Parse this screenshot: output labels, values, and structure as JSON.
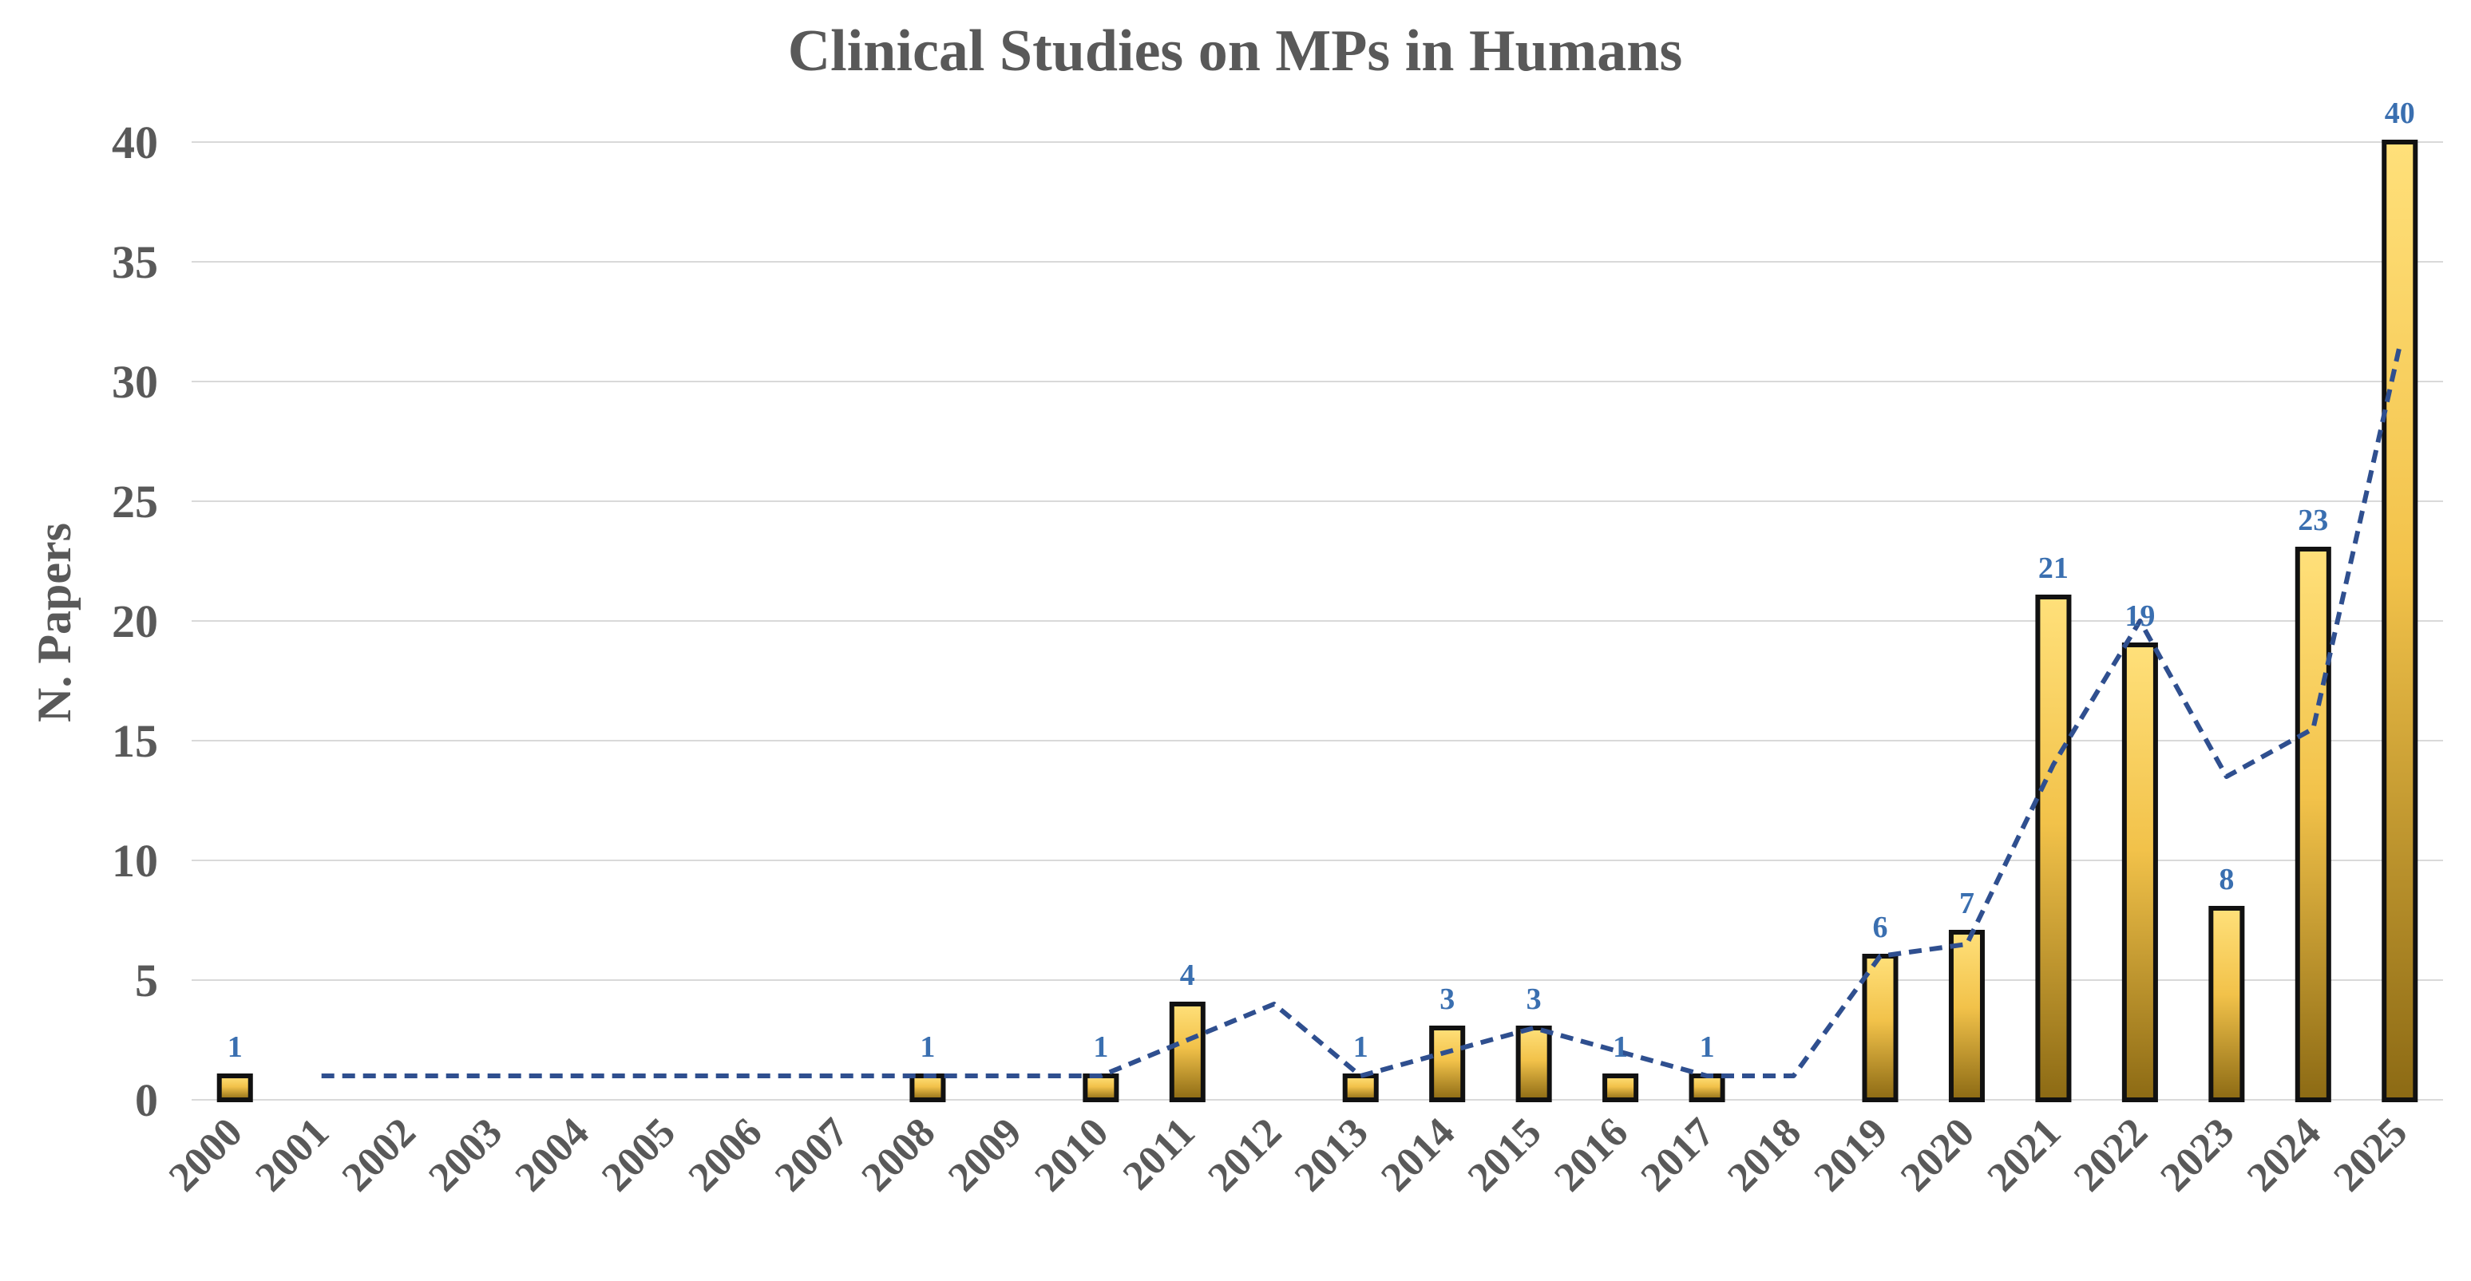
{
  "chart_data": {
    "type": "bar",
    "title": "Clinical Studies on MPs in Humans",
    "xlabel": "",
    "ylabel": "N. Papers",
    "ylim": [
      0,
      40
    ],
    "yticks": [
      0,
      5,
      10,
      15,
      20,
      25,
      30,
      35,
      40
    ],
    "grid": true,
    "categories": [
      "2000",
      "2001",
      "2002",
      "2003",
      "2004",
      "2005",
      "2006",
      "2007",
      "2008",
      "2009",
      "2010",
      "2011",
      "2012",
      "2013",
      "2014",
      "2015",
      "2016",
      "2017",
      "2018",
      "2019",
      "2020",
      "2021",
      "2022",
      "2023",
      "2024",
      "2025"
    ],
    "values": [
      1,
      0,
      0,
      0,
      0,
      0,
      0,
      0,
      1,
      0,
      1,
      4,
      0,
      1,
      3,
      3,
      1,
      1,
      0,
      6,
      7,
      21,
      19,
      8,
      23,
      40
    ],
    "data_labels": [
      "1",
      "",
      "",
      "",
      "",
      "",
      "",
      "",
      "1",
      "",
      "1",
      "4",
      "",
      "1",
      "3",
      "3",
      "1",
      "1",
      "",
      "6",
      "7",
      "21",
      "19",
      "8",
      "23",
      "40"
    ],
    "trendline": {
      "name": "2-period moving average",
      "style": "dashed",
      "start_index": 1,
      "values": [
        1,
        1,
        1,
        1,
        1,
        1,
        1,
        1,
        1,
        1,
        2.5,
        4,
        1,
        2,
        3,
        2,
        1,
        1,
        6,
        6.5,
        14,
        20,
        13.5,
        15.5,
        31.5
      ]
    },
    "colors": {
      "bar_top": "#FFE07A",
      "bar_bottom": "#8C6A14",
      "bar_outline": "#111111",
      "trendline": "#2F4F8F",
      "data_label": "#3A6FB0",
      "text": "#595959",
      "grid": "#D9D9D9"
    }
  }
}
